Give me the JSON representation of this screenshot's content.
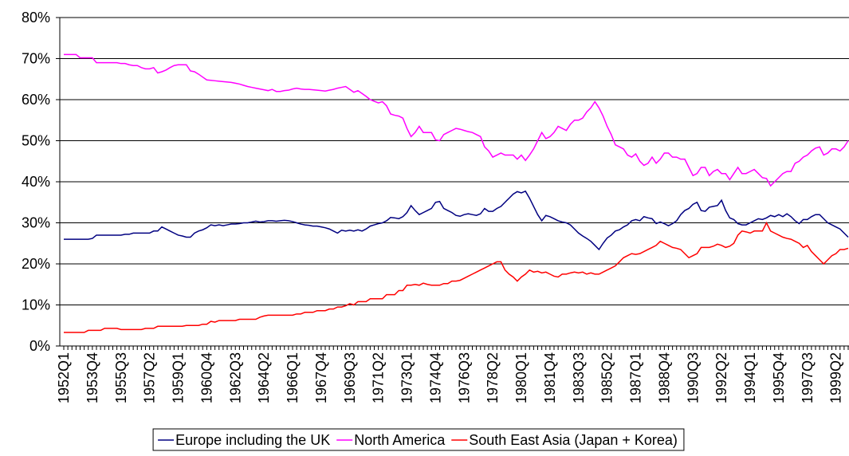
{
  "chart_data": {
    "type": "line",
    "categories": [
      "1952Q1",
      null,
      null,
      null,
      null,
      null,
      null,
      "1953Q4",
      null,
      null,
      null,
      null,
      null,
      null,
      "1955Q3",
      null,
      null,
      null,
      null,
      null,
      null,
      "1957Q2",
      null,
      null,
      null,
      null,
      null,
      null,
      "1959Q1",
      null,
      null,
      null,
      null,
      null,
      null,
      "1960Q4",
      null,
      null,
      null,
      null,
      null,
      null,
      "1962Q3",
      null,
      null,
      null,
      null,
      null,
      null,
      "1964Q2",
      null,
      null,
      null,
      null,
      null,
      null,
      "1966Q1",
      null,
      null,
      null,
      null,
      null,
      null,
      "1967Q4",
      null,
      null,
      null,
      null,
      null,
      null,
      "1969Q3",
      null,
      null,
      null,
      null,
      null,
      null,
      "1971Q2",
      null,
      null,
      null,
      null,
      null,
      null,
      "1973Q1",
      null,
      null,
      null,
      null,
      null,
      null,
      "1974Q4",
      null,
      null,
      null,
      null,
      null,
      null,
      "1976Q3",
      null,
      null,
      null,
      null,
      null,
      null,
      "1978Q2",
      null,
      null,
      null,
      null,
      null,
      null,
      "1980Q1",
      null,
      null,
      null,
      null,
      null,
      null,
      "1981Q4",
      null,
      null,
      null,
      null,
      null,
      null,
      "1983Q3",
      null,
      null,
      null,
      null,
      null,
      null,
      "1985Q2",
      null,
      null,
      null,
      null,
      null,
      null,
      "1987Q1",
      null,
      null,
      null,
      null,
      null,
      null,
      "1988Q4",
      null,
      null,
      null,
      null,
      null,
      null,
      "1990Q3",
      null,
      null,
      null,
      null,
      null,
      null,
      "1992Q2",
      null,
      null,
      null,
      null,
      null,
      null,
      "1994Q1",
      null,
      null,
      null,
      null,
      null,
      null,
      "1995Q4",
      null,
      null,
      null,
      null,
      null,
      null,
      "1997Q3",
      null,
      null,
      null,
      null,
      null,
      null,
      "1999Q2",
      null,
      null,
      null
    ],
    "series": [
      {
        "name": "Europe including the UK",
        "color": "#000080",
        "values": [
          26,
          26,
          26,
          26,
          26,
          26,
          26,
          26.2,
          27,
          27,
          27,
          27,
          27,
          27,
          27,
          27.2,
          27.2,
          27.5,
          27.5,
          27.5,
          27.5,
          27.5,
          28,
          28,
          29,
          28.5,
          28,
          27.5,
          27,
          26.8,
          26.5,
          26.5,
          27.5,
          28,
          28.3,
          28.8,
          29.5,
          29.3,
          29.5,
          29.3,
          29.5,
          29.7,
          29.7,
          29.8,
          30,
          30,
          30.2,
          30.4,
          30.2,
          30.3,
          30.5,
          30.5,
          30.4,
          30.5,
          30.6,
          30.5,
          30.3,
          30,
          29.7,
          29.5,
          29.4,
          29.2,
          29.2,
          29,
          28.8,
          28.5,
          28,
          27.5,
          28.2,
          28,
          28.2,
          28,
          28.3,
          28,
          28.5,
          29.2,
          29.5,
          29.8,
          30,
          30.5,
          31.3,
          31.2,
          31,
          31.5,
          32.5,
          34.2,
          33,
          32,
          32.5,
          33,
          33.5,
          35,
          35.2,
          33.5,
          33,
          32.5,
          31.8,
          31.6,
          32,
          32.2,
          32,
          31.8,
          32.2,
          33.5,
          32.8,
          32.8,
          33.5,
          34,
          35,
          36,
          37,
          37.6,
          37.3,
          37.7,
          36,
          34,
          32,
          30.5,
          31.8,
          31.5,
          31,
          30.5,
          30.2,
          30,
          29.5,
          28.5,
          27.5,
          26.8,
          26.2,
          25.5,
          24.5,
          23.5,
          25,
          26.3,
          27,
          28,
          28.3,
          29,
          29.5,
          30.5,
          30.8,
          30.5,
          31.5,
          31.2,
          31,
          29.8,
          30.2,
          29.8,
          29.3,
          29.8,
          30.5,
          32,
          33,
          33.5,
          34.5,
          35,
          33,
          32.8,
          33.8,
          34,
          34.2,
          35.5,
          33,
          31.2,
          30.8,
          29.8,
          29.5,
          29.5,
          30,
          30.5,
          31,
          30.8,
          31.2,
          31.8,
          31.5,
          32,
          31.5,
          32.2,
          31.5,
          30.5,
          29.8,
          30.8,
          30.8,
          31.5,
          32,
          32,
          31,
          30,
          29.5,
          29,
          28.5,
          27.5,
          26.5
        ]
      },
      {
        "name": "North America",
        "color": "#ff00ff",
        "values": [
          71,
          71,
          71,
          71,
          70.2,
          70.2,
          70.2,
          70.2,
          69,
          69,
          69,
          69,
          69,
          69,
          68.8,
          68.8,
          68.5,
          68.3,
          68.3,
          67.8,
          67.5,
          67.5,
          67.8,
          66.5,
          66.8,
          67.2,
          67.8,
          68.3,
          68.5,
          68.5,
          68.5,
          67,
          66.8,
          66.2,
          65.5,
          64.8,
          64.7,
          64.6,
          64.5,
          64.4,
          64.3,
          64.2,
          64,
          63.8,
          63.5,
          63.2,
          63,
          62.8,
          62.6,
          62.4,
          62.2,
          62.5,
          62,
          62,
          62.2,
          62.3,
          62.6,
          62.8,
          62.6,
          62.5,
          62.5,
          62.4,
          62.3,
          62.2,
          62.1,
          62.3,
          62.5,
          62.8,
          63,
          63.2,
          62.5,
          61.8,
          62.2,
          61.5,
          60.8,
          60,
          59.6,
          59.2,
          59.5,
          58.5,
          56.5,
          56.2,
          56,
          55.5,
          53,
          51,
          52,
          53.5,
          52,
          52,
          52,
          50.2,
          50,
          51.5,
          52,
          52.5,
          53,
          52.8,
          52.5,
          52.2,
          52,
          51.5,
          51,
          48.5,
          47.5,
          46,
          46.5,
          47,
          46.5,
          46.5,
          46.5,
          45.5,
          46.5,
          45.2,
          46.5,
          48,
          50,
          52,
          50.5,
          51,
          52,
          53.5,
          53,
          52.5,
          54,
          55,
          55,
          55.5,
          57,
          58,
          59.5,
          58,
          56,
          53.5,
          51.5,
          49,
          48.5,
          48,
          46.5,
          46,
          46.8,
          45,
          44,
          44.5,
          46,
          44.5,
          45.5,
          47,
          47,
          46,
          46,
          45.5,
          45.5,
          43.5,
          41.5,
          42,
          43.5,
          43.5,
          41.5,
          42.5,
          43,
          42,
          42,
          40.5,
          42,
          43.5,
          42,
          42,
          42.5,
          43,
          42,
          41,
          40.8,
          39,
          40,
          41,
          42,
          42.5,
          42.5,
          44.5,
          45,
          46,
          46.5,
          47.5,
          48.2,
          48.5,
          46.5,
          47,
          48,
          48,
          47.5,
          48.5,
          50
        ]
      },
      {
        "name": "South East Asia (Japan + Korea)",
        "color": "#ff0000",
        "values": [
          3.3,
          3.3,
          3.3,
          3.3,
          3.3,
          3.3,
          3.8,
          3.8,
          3.8,
          3.8,
          4.3,
          4.3,
          4.3,
          4.3,
          4,
          4,
          4,
          4,
          4,
          4,
          4.3,
          4.3,
          4.3,
          4.8,
          4.8,
          4.8,
          4.8,
          4.8,
          4.8,
          4.8,
          5,
          5,
          5,
          5,
          5.3,
          5.3,
          6,
          5.8,
          6.2,
          6.2,
          6.2,
          6.2,
          6.2,
          6.5,
          6.5,
          6.5,
          6.5,
          6.5,
          7,
          7.3,
          7.5,
          7.5,
          7.5,
          7.5,
          7.5,
          7.5,
          7.5,
          7.8,
          7.8,
          8.2,
          8.2,
          8.2,
          8.6,
          8.6,
          8.6,
          9,
          9,
          9.5,
          9.5,
          9.8,
          10.3,
          10,
          10.8,
          10.8,
          10.8,
          11.5,
          11.5,
          11.5,
          11.5,
          12.5,
          12.5,
          12.5,
          13.5,
          13.5,
          14.8,
          14.8,
          15,
          14.8,
          15.3,
          15,
          14.8,
          14.8,
          14.8,
          15.2,
          15.2,
          15.8,
          15.8,
          16,
          16.5,
          17,
          17.5,
          18,
          18.5,
          19,
          19.5,
          20,
          20.5,
          20.5,
          18.5,
          17.5,
          16.8,
          15.8,
          16.8,
          17.5,
          18.5,
          18,
          18.2,
          17.8,
          18,
          17.5,
          17,
          16.8,
          17.5,
          17.5,
          17.8,
          18,
          17.8,
          18,
          17.5,
          17.8,
          17.5,
          17.5,
          18,
          18.5,
          19,
          19.5,
          20.5,
          21.5,
          22,
          22.5,
          22.3,
          22.5,
          23,
          23.5,
          24,
          24.5,
          25.5,
          25,
          24.5,
          24,
          23.8,
          23.5,
          22.5,
          21.5,
          22,
          22.5,
          24,
          24,
          24,
          24.3,
          24.8,
          24.5,
          24,
          24.3,
          25,
          27,
          28,
          27.8,
          27.5,
          28,
          28,
          28,
          30,
          28,
          27.5,
          27,
          26.5,
          26.2,
          26,
          25.5,
          25,
          24,
          24.5,
          23,
          22,
          21,
          20,
          21,
          22,
          22.5,
          23.5,
          23.5,
          23.8
        ]
      }
    ],
    "ylim": [
      0,
      80
    ],
    "yticks": [
      {
        "value": 0,
        "label": "0%"
      },
      {
        "value": 10,
        "label": "10%"
      },
      {
        "value": 20,
        "label": "20%"
      },
      {
        "value": 30,
        "label": "30%"
      },
      {
        "value": 40,
        "label": "40%"
      },
      {
        "value": 50,
        "label": "50%"
      },
      {
        "value": 60,
        "label": "60%"
      },
      {
        "value": 70,
        "label": "70%"
      },
      {
        "value": 80,
        "label": "80%"
      }
    ],
    "grid": true,
    "legend": "bottom"
  }
}
